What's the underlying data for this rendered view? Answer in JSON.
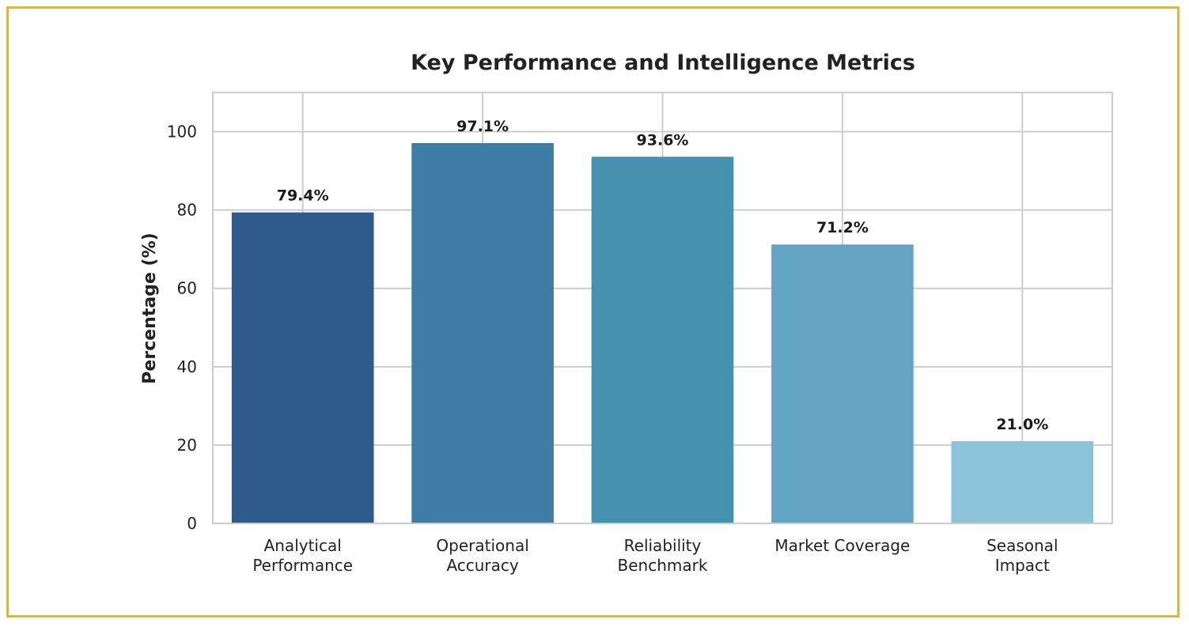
{
  "chart_data": {
    "type": "bar",
    "title": "Key Performance and Intelligence Metrics",
    "xlabel": "",
    "ylabel": "Percentage (%)",
    "categories": [
      [
        "Analytical",
        "Performance"
      ],
      [
        "Operational",
        "Accuracy"
      ],
      [
        "Reliability",
        "Benchmark"
      ],
      [
        "Market Coverage"
      ],
      [
        "Seasonal",
        "Impact"
      ]
    ],
    "values": [
      79.4,
      97.1,
      93.6,
      71.2,
      21.0
    ],
    "value_labels": [
      "79.4%",
      "97.1%",
      "93.6%",
      "71.2%",
      "21.0%"
    ],
    "colors": [
      "#2e5b8c",
      "#3e7ca6",
      "#4690b0",
      "#63a5c3",
      "#8cc3d8"
    ],
    "ylim": [
      0,
      110
    ],
    "yticks": [
      0,
      20,
      40,
      60,
      80,
      100
    ],
    "grid": true,
    "grid_color": "#cccccc",
    "frame_color": "#d6b656"
  }
}
